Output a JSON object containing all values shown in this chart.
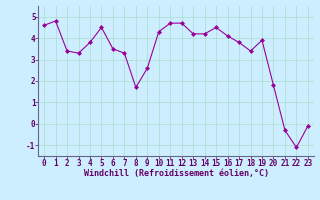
{
  "x": [
    0,
    1,
    2,
    3,
    4,
    5,
    6,
    7,
    8,
    9,
    10,
    11,
    12,
    13,
    14,
    15,
    16,
    17,
    18,
    19,
    20,
    21,
    22,
    23
  ],
  "y": [
    4.6,
    4.8,
    3.4,
    3.3,
    3.8,
    4.5,
    3.5,
    3.3,
    1.7,
    2.6,
    4.3,
    4.7,
    4.7,
    4.2,
    4.2,
    4.5,
    4.1,
    3.8,
    3.4,
    3.9,
    1.8,
    -0.3,
    -1.1,
    -0.1
  ],
  "line_color": "#990099",
  "marker": "D",
  "markersize": 2.0,
  "linewidth": 0.8,
  "bg_color": "#cceeff",
  "grid_color": "#aaddcc",
  "xlabel": "Windchill (Refroidissement éolien,°C)",
  "xlabel_color": "#660066",
  "xlabel_fontsize": 6.0,
  "tick_color": "#660066",
  "tick_fontsize": 5.5,
  "ylim": [
    -1.5,
    5.5
  ],
  "xlim": [
    -0.5,
    23.5
  ],
  "yticks": [
    -1,
    0,
    1,
    2,
    3,
    4,
    5
  ],
  "xtick_labels": [
    "0",
    "1",
    "2",
    "3",
    "4",
    "5",
    "6",
    "7",
    "8",
    "9",
    "10",
    "11",
    "12",
    "13",
    "14",
    "15",
    "16",
    "17",
    "18",
    "19",
    "20",
    "21",
    "22",
    "23"
  ],
  "spine_color": "#666688"
}
